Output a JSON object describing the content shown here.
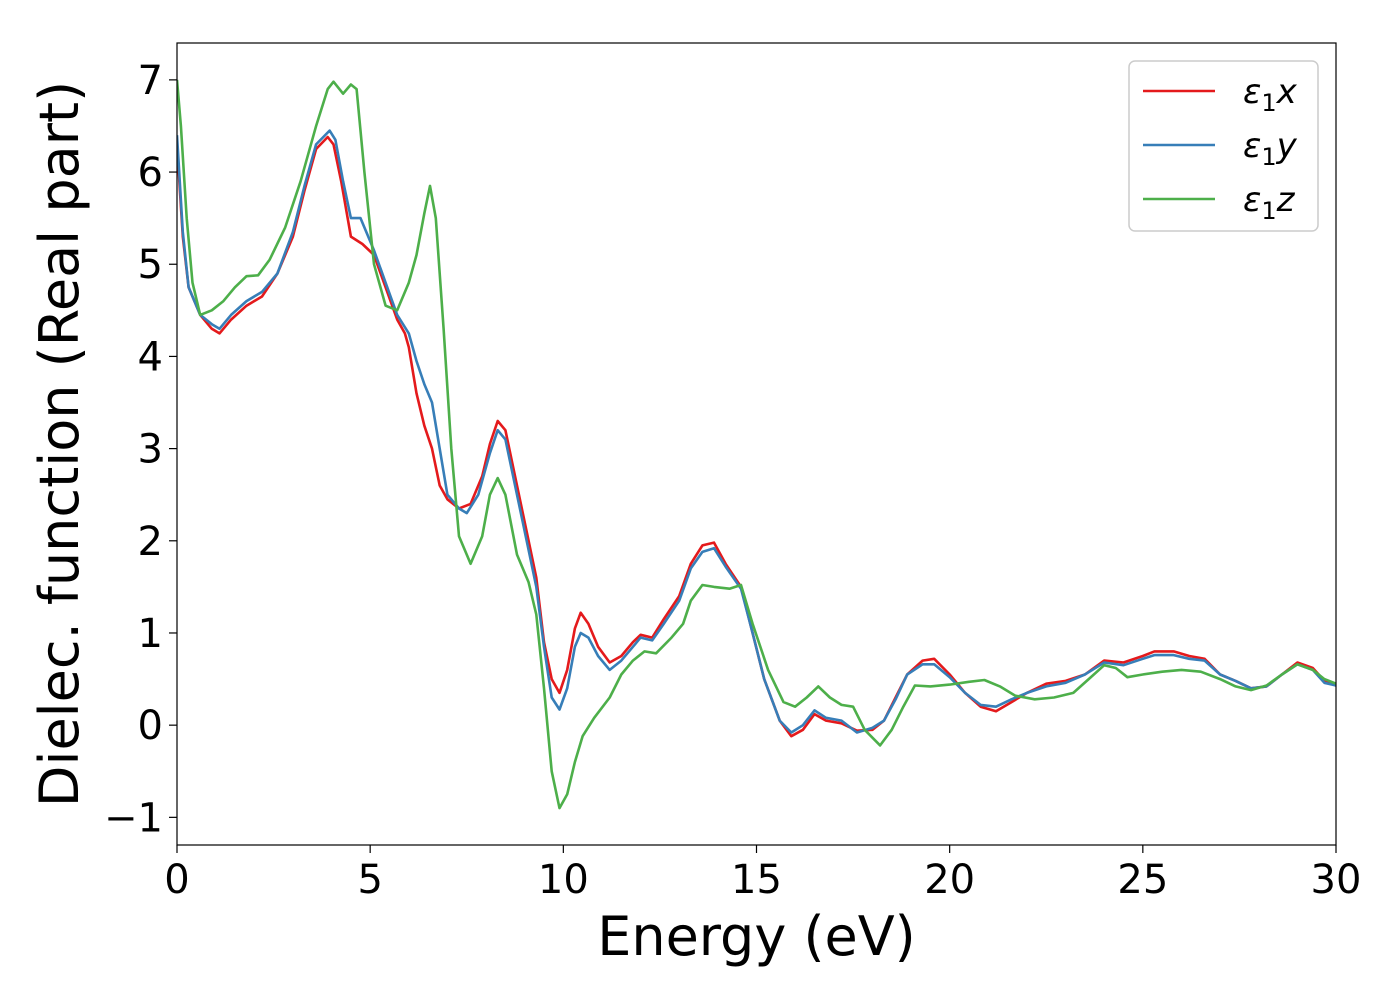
{
  "chart_data": {
    "type": "line",
    "xlabel": "Energy (eV)",
    "ylabel": "Dielec. function (Real part)",
    "xlim": [
      0,
      30
    ],
    "ylim": [
      -1.3,
      7.4
    ],
    "xticks": [
      0,
      5,
      10,
      15,
      20,
      25,
      30
    ],
    "xtick_labels": [
      "0",
      "5",
      "10",
      "15",
      "20",
      "25",
      "30"
    ],
    "yticks": [
      -1,
      0,
      1,
      2,
      3,
      4,
      5,
      6,
      7
    ],
    "ytick_labels": [
      "−1",
      "0",
      "1",
      "2",
      "3",
      "4",
      "5",
      "6",
      "7"
    ],
    "grid": false,
    "legend_position": "top-right",
    "series": [
      {
        "name": "ε1x",
        "legend_base": "ε",
        "legend_sub": "1",
        "legend_suffix": "x",
        "color": "#e41a1c",
        "points": [
          [
            0,
            6.3
          ],
          [
            0.15,
            5.3
          ],
          [
            0.3,
            4.75
          ],
          [
            0.6,
            4.45
          ],
          [
            0.9,
            4.3
          ],
          [
            1.1,
            4.25
          ],
          [
            1.4,
            4.4
          ],
          [
            1.8,
            4.55
          ],
          [
            2.2,
            4.65
          ],
          [
            2.6,
            4.9
          ],
          [
            3.0,
            5.3
          ],
          [
            3.3,
            5.8
          ],
          [
            3.6,
            6.25
          ],
          [
            3.9,
            6.38
          ],
          [
            4.05,
            6.3
          ],
          [
            4.25,
            5.9
          ],
          [
            4.5,
            5.3
          ],
          [
            4.8,
            5.22
          ],
          [
            5.1,
            5.1
          ],
          [
            5.4,
            4.75
          ],
          [
            5.7,
            4.4
          ],
          [
            5.9,
            4.25
          ],
          [
            6.0,
            4.1
          ],
          [
            6.2,
            3.6
          ],
          [
            6.4,
            3.25
          ],
          [
            6.6,
            3.0
          ],
          [
            6.8,
            2.6
          ],
          [
            7.0,
            2.45
          ],
          [
            7.3,
            2.35
          ],
          [
            7.6,
            2.4
          ],
          [
            7.9,
            2.7
          ],
          [
            8.1,
            3.05
          ],
          [
            8.3,
            3.3
          ],
          [
            8.5,
            3.2
          ],
          [
            8.8,
            2.6
          ],
          [
            9.1,
            2.0
          ],
          [
            9.3,
            1.6
          ],
          [
            9.5,
            0.9
          ],
          [
            9.7,
            0.5
          ],
          [
            9.9,
            0.35
          ],
          [
            10.1,
            0.6
          ],
          [
            10.3,
            1.05
          ],
          [
            10.45,
            1.22
          ],
          [
            10.65,
            1.1
          ],
          [
            10.9,
            0.85
          ],
          [
            11.2,
            0.68
          ],
          [
            11.5,
            0.75
          ],
          [
            11.8,
            0.9
          ],
          [
            12.0,
            0.98
          ],
          [
            12.3,
            0.95
          ],
          [
            12.6,
            1.15
          ],
          [
            13.0,
            1.4
          ],
          [
            13.3,
            1.75
          ],
          [
            13.6,
            1.95
          ],
          [
            13.9,
            1.98
          ],
          [
            14.2,
            1.75
          ],
          [
            14.6,
            1.5
          ],
          [
            14.9,
            1.0
          ],
          [
            15.2,
            0.5
          ],
          [
            15.6,
            0.05
          ],
          [
            15.9,
            -0.12
          ],
          [
            16.2,
            -0.05
          ],
          [
            16.5,
            0.12
          ],
          [
            16.8,
            0.05
          ],
          [
            17.2,
            0.02
          ],
          [
            17.6,
            -0.06
          ],
          [
            18.0,
            -0.05
          ],
          [
            18.3,
            0.05
          ],
          [
            18.6,
            0.3
          ],
          [
            18.9,
            0.55
          ],
          [
            19.3,
            0.7
          ],
          [
            19.6,
            0.72
          ],
          [
            20.0,
            0.55
          ],
          [
            20.4,
            0.35
          ],
          [
            20.8,
            0.2
          ],
          [
            21.2,
            0.15
          ],
          [
            21.6,
            0.25
          ],
          [
            22.0,
            0.35
          ],
          [
            22.5,
            0.45
          ],
          [
            23.0,
            0.48
          ],
          [
            23.5,
            0.55
          ],
          [
            24.0,
            0.7
          ],
          [
            24.5,
            0.68
          ],
          [
            25.0,
            0.75
          ],
          [
            25.3,
            0.8
          ],
          [
            25.8,
            0.8
          ],
          [
            26.2,
            0.75
          ],
          [
            26.6,
            0.72
          ],
          [
            27.0,
            0.55
          ],
          [
            27.4,
            0.48
          ],
          [
            27.8,
            0.4
          ],
          [
            28.2,
            0.42
          ],
          [
            28.6,
            0.55
          ],
          [
            29.0,
            0.68
          ],
          [
            29.4,
            0.62
          ],
          [
            29.7,
            0.48
          ],
          [
            30,
            0.43
          ]
        ]
      },
      {
        "name": "ε1y",
        "legend_base": "ε",
        "legend_sub": "1",
        "legend_suffix": "y",
        "color": "#377eb8",
        "points": [
          [
            0,
            6.4
          ],
          [
            0.15,
            5.35
          ],
          [
            0.3,
            4.75
          ],
          [
            0.6,
            4.45
          ],
          [
            0.9,
            4.35
          ],
          [
            1.1,
            4.3
          ],
          [
            1.4,
            4.45
          ],
          [
            1.8,
            4.6
          ],
          [
            2.2,
            4.7
          ],
          [
            2.6,
            4.9
          ],
          [
            3.0,
            5.35
          ],
          [
            3.3,
            5.85
          ],
          [
            3.6,
            6.3
          ],
          [
            3.95,
            6.45
          ],
          [
            4.1,
            6.35
          ],
          [
            4.3,
            5.9
          ],
          [
            4.5,
            5.5
          ],
          [
            4.75,
            5.5
          ],
          [
            5.1,
            5.15
          ],
          [
            5.4,
            4.8
          ],
          [
            5.7,
            4.45
          ],
          [
            6.0,
            4.25
          ],
          [
            6.2,
            3.95
          ],
          [
            6.4,
            3.7
          ],
          [
            6.6,
            3.5
          ],
          [
            6.8,
            3.0
          ],
          [
            7.0,
            2.5
          ],
          [
            7.3,
            2.35
          ],
          [
            7.5,
            2.3
          ],
          [
            7.8,
            2.5
          ],
          [
            8.1,
            2.95
          ],
          [
            8.3,
            3.2
          ],
          [
            8.5,
            3.1
          ],
          [
            8.8,
            2.5
          ],
          [
            9.1,
            1.9
          ],
          [
            9.3,
            1.5
          ],
          [
            9.5,
            0.85
          ],
          [
            9.7,
            0.3
          ],
          [
            9.9,
            0.17
          ],
          [
            10.1,
            0.4
          ],
          [
            10.3,
            0.85
          ],
          [
            10.45,
            1.0
          ],
          [
            10.65,
            0.95
          ],
          [
            10.9,
            0.75
          ],
          [
            11.2,
            0.6
          ],
          [
            11.5,
            0.7
          ],
          [
            11.8,
            0.85
          ],
          [
            12.0,
            0.95
          ],
          [
            12.3,
            0.92
          ],
          [
            12.6,
            1.1
          ],
          [
            13.0,
            1.35
          ],
          [
            13.3,
            1.7
          ],
          [
            13.6,
            1.88
          ],
          [
            13.9,
            1.92
          ],
          [
            14.2,
            1.72
          ],
          [
            14.6,
            1.48
          ],
          [
            14.9,
            1.0
          ],
          [
            15.2,
            0.5
          ],
          [
            15.6,
            0.05
          ],
          [
            15.9,
            -0.08
          ],
          [
            16.2,
            0.0
          ],
          [
            16.5,
            0.16
          ],
          [
            16.8,
            0.08
          ],
          [
            17.2,
            0.05
          ],
          [
            17.6,
            -0.08
          ],
          [
            18.0,
            -0.03
          ],
          [
            18.3,
            0.05
          ],
          [
            18.6,
            0.28
          ],
          [
            18.9,
            0.55
          ],
          [
            19.3,
            0.66
          ],
          [
            19.6,
            0.66
          ],
          [
            20.0,
            0.52
          ],
          [
            20.4,
            0.35
          ],
          [
            20.8,
            0.22
          ],
          [
            21.2,
            0.2
          ],
          [
            21.6,
            0.28
          ],
          [
            22.0,
            0.35
          ],
          [
            22.5,
            0.42
          ],
          [
            23.0,
            0.46
          ],
          [
            23.5,
            0.55
          ],
          [
            24.0,
            0.68
          ],
          [
            24.5,
            0.65
          ],
          [
            25.0,
            0.72
          ],
          [
            25.3,
            0.76
          ],
          [
            25.8,
            0.76
          ],
          [
            26.2,
            0.72
          ],
          [
            26.6,
            0.7
          ],
          [
            27.0,
            0.55
          ],
          [
            27.4,
            0.48
          ],
          [
            27.8,
            0.4
          ],
          [
            28.2,
            0.42
          ],
          [
            28.6,
            0.55
          ],
          [
            29.0,
            0.66
          ],
          [
            29.4,
            0.6
          ],
          [
            29.7,
            0.46
          ],
          [
            30,
            0.43
          ]
        ]
      },
      {
        "name": "ε1z",
        "legend_base": "ε",
        "legend_sub": "1",
        "legend_suffix": "z",
        "color": "#4daf4a",
        "points": [
          [
            0,
            7.0
          ],
          [
            0.1,
            6.5
          ],
          [
            0.25,
            5.5
          ],
          [
            0.4,
            4.8
          ],
          [
            0.6,
            4.45
          ],
          [
            0.9,
            4.5
          ],
          [
            1.2,
            4.6
          ],
          [
            1.5,
            4.75
          ],
          [
            1.8,
            4.87
          ],
          [
            2.1,
            4.88
          ],
          [
            2.4,
            5.05
          ],
          [
            2.8,
            5.4
          ],
          [
            3.2,
            5.9
          ],
          [
            3.6,
            6.5
          ],
          [
            3.9,
            6.9
          ],
          [
            4.05,
            6.98
          ],
          [
            4.3,
            6.85
          ],
          [
            4.5,
            6.95
          ],
          [
            4.65,
            6.9
          ],
          [
            4.85,
            6.0
          ],
          [
            5.1,
            5.0
          ],
          [
            5.4,
            4.55
          ],
          [
            5.7,
            4.5
          ],
          [
            6.0,
            4.8
          ],
          [
            6.2,
            5.1
          ],
          [
            6.4,
            5.55
          ],
          [
            6.55,
            5.85
          ],
          [
            6.7,
            5.5
          ],
          [
            6.9,
            4.3
          ],
          [
            7.1,
            3.0
          ],
          [
            7.3,
            2.05
          ],
          [
            7.6,
            1.75
          ],
          [
            7.9,
            2.05
          ],
          [
            8.1,
            2.5
          ],
          [
            8.3,
            2.68
          ],
          [
            8.5,
            2.5
          ],
          [
            8.8,
            1.85
          ],
          [
            9.1,
            1.55
          ],
          [
            9.3,
            1.2
          ],
          [
            9.5,
            0.4
          ],
          [
            9.7,
            -0.5
          ],
          [
            9.9,
            -0.9
          ],
          [
            10.1,
            -0.75
          ],
          [
            10.3,
            -0.4
          ],
          [
            10.5,
            -0.12
          ],
          [
            10.8,
            0.08
          ],
          [
            11.2,
            0.3
          ],
          [
            11.5,
            0.55
          ],
          [
            11.8,
            0.7
          ],
          [
            12.1,
            0.8
          ],
          [
            12.4,
            0.78
          ],
          [
            12.8,
            0.95
          ],
          [
            13.1,
            1.1
          ],
          [
            13.3,
            1.35
          ],
          [
            13.6,
            1.52
          ],
          [
            13.9,
            1.5
          ],
          [
            14.3,
            1.48
          ],
          [
            14.6,
            1.52
          ],
          [
            14.9,
            1.1
          ],
          [
            15.3,
            0.6
          ],
          [
            15.7,
            0.25
          ],
          [
            16.0,
            0.2
          ],
          [
            16.3,
            0.3
          ],
          [
            16.6,
            0.42
          ],
          [
            16.9,
            0.3
          ],
          [
            17.2,
            0.22
          ],
          [
            17.5,
            0.2
          ],
          [
            17.8,
            -0.05
          ],
          [
            18.2,
            -0.22
          ],
          [
            18.5,
            -0.05
          ],
          [
            18.8,
            0.2
          ],
          [
            19.1,
            0.43
          ],
          [
            19.5,
            0.42
          ],
          [
            20.0,
            0.44
          ],
          [
            20.5,
            0.47
          ],
          [
            20.9,
            0.49
          ],
          [
            21.3,
            0.42
          ],
          [
            21.7,
            0.32
          ],
          [
            22.2,
            0.28
          ],
          [
            22.7,
            0.3
          ],
          [
            23.2,
            0.35
          ],
          [
            23.6,
            0.5
          ],
          [
            24.0,
            0.65
          ],
          [
            24.3,
            0.62
          ],
          [
            24.6,
            0.52
          ],
          [
            25.0,
            0.55
          ],
          [
            25.5,
            0.58
          ],
          [
            26.0,
            0.6
          ],
          [
            26.5,
            0.58
          ],
          [
            27.0,
            0.5
          ],
          [
            27.4,
            0.42
          ],
          [
            27.8,
            0.38
          ],
          [
            28.2,
            0.43
          ],
          [
            28.6,
            0.55
          ],
          [
            29.0,
            0.66
          ],
          [
            29.4,
            0.6
          ],
          [
            29.7,
            0.5
          ],
          [
            30,
            0.45
          ]
        ]
      }
    ]
  }
}
